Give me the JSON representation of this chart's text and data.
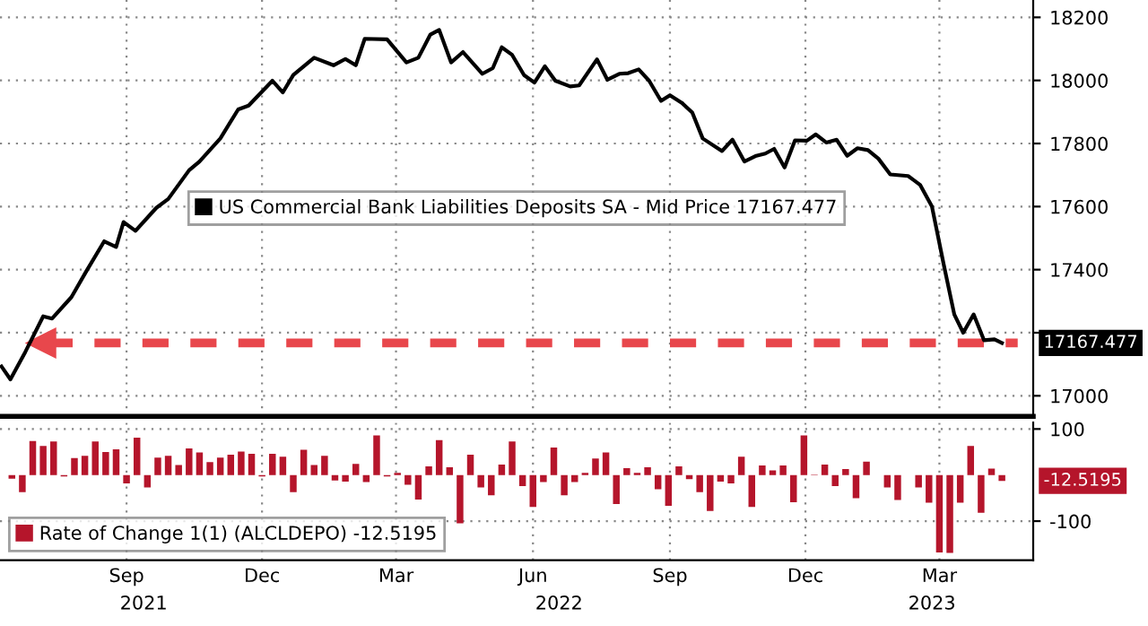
{
  "chart_data": [
    {
      "type": "line",
      "x": [
        "2021-06-23",
        "2021-06-29",
        "2021-07-09",
        "2021-07-21",
        "2021-07-27",
        "2021-08-09",
        "2021-08-19",
        "2021-08-31",
        "2021-09-08",
        "2021-09-13",
        "2021-09-21",
        "2021-10-05",
        "2021-10-13",
        "2021-10-27",
        "2021-11-03",
        "2021-11-17",
        "2021-11-29",
        "2021-12-06",
        "2021-12-22",
        "2021-12-29",
        "2022-01-05",
        "2022-01-19",
        "2022-02-01",
        "2022-02-09",
        "2022-02-16",
        "2022-02-22",
        "2022-03-09",
        "2022-03-22",
        "2022-03-30",
        "2022-04-07",
        "2022-04-13",
        "2022-04-21",
        "2022-04-29",
        "2022-05-12",
        "2022-05-19",
        "2022-05-25",
        "2022-06-01",
        "2022-06-09",
        "2022-06-16",
        "2022-06-23",
        "2022-06-30",
        "2022-07-10",
        "2022-07-16",
        "2022-07-28",
        "2022-08-04",
        "2022-08-12",
        "2022-08-18",
        "2022-08-25",
        "2022-09-01",
        "2022-09-09",
        "2022-09-15",
        "2022-09-23",
        "2022-09-30",
        "2022-10-07",
        "2022-10-20",
        "2022-10-27",
        "2022-11-04",
        "2022-11-12",
        "2022-11-18",
        "2022-11-24",
        "2022-12-01",
        "2022-12-08",
        "2022-12-16",
        "2022-12-22",
        "2022-12-29",
        "2023-01-05",
        "2023-01-12",
        "2023-01-19",
        "2023-01-26",
        "2023-02-02",
        "2023-02-10",
        "2023-02-22",
        "2023-03-02",
        "2023-03-10",
        "2023-03-18",
        "2023-03-25",
        "2023-03-31",
        "2023-04-07",
        "2023-04-14",
        "2023-04-21",
        "2023-04-26"
      ],
      "series": [
        {
          "name": "US Commercial Bank Liabilities Deposits SA - Mid Price 17167.477",
          "color": "#000000",
          "values": [
            17093,
            17052,
            17139,
            17252,
            17245,
            17313,
            17395,
            17490,
            17472,
            17551,
            17523,
            17596,
            17624,
            17715,
            17743,
            17816,
            17908,
            17920,
            17999,
            17962,
            18017,
            18072,
            18048,
            18068,
            18048,
            18132,
            18130,
            18057,
            18072,
            18145,
            18160,
            18057,
            18090,
            18021,
            18039,
            18105,
            18081,
            18017,
            17993,
            18045,
            17999,
            17981,
            17984,
            18067,
            18002,
            18021,
            18023,
            18035,
            17999,
            17935,
            17953,
            17929,
            17898,
            17816,
            17776,
            17812,
            17743,
            17761,
            17768,
            17783,
            17724,
            17810,
            17809,
            17829,
            17803,
            17812,
            17761,
            17785,
            17779,
            17752,
            17702,
            17697,
            17669,
            17600,
            17414,
            17258,
            17200,
            17258,
            17176,
            17179,
            17167.477
          ]
        }
      ],
      "xlim": [
        "2021-06-22",
        "2023-05-17"
      ],
      "xticks": [
        {
          "value": "2021-09-15",
          "label": null
        },
        {
          "value": "2021-12-15",
          "label": null
        },
        {
          "value": "2022-03-15",
          "label": null
        },
        {
          "value": "2022-06-15",
          "label": null
        },
        {
          "value": "2022-09-15",
          "label": null
        },
        {
          "value": "2022-12-15",
          "label": null
        },
        {
          "value": "2023-03-15",
          "label": null
        }
      ],
      "ylim": [
        16935,
        18255
      ],
      "yticks": [
        17000,
        {
          "value": 17200,
          "label": null
        },
        17400,
        17600,
        17800,
        18000,
        18200
      ],
      "tick_labels": "y",
      "grid": true,
      "legend": "center",
      "ref_lines": [
        {
          "axis": "y",
          "value": 17167.477,
          "color": "#e8474c",
          "line_style": "dashed"
        }
      ],
      "annotations": [
        {
          "text": "17167.477",
          "x": "2023-04-26",
          "y": 17167.477
        }
      ]
    },
    {
      "type": "bar",
      "x": [
        "2021-06-30",
        "2021-07-07",
        "2021-07-14",
        "2021-07-21",
        "2021-07-28",
        "2021-08-04",
        "2021-08-11",
        "2021-08-18",
        "2021-08-25",
        "2021-09-01",
        "2021-09-08",
        "2021-09-15",
        "2021-09-22",
        "2021-09-29",
        "2021-10-06",
        "2021-10-13",
        "2021-10-20",
        "2021-10-27",
        "2021-11-03",
        "2021-11-10",
        "2021-11-17",
        "2021-11-24",
        "2021-12-01",
        "2021-12-08",
        "2021-12-15",
        "2021-12-22",
        "2021-12-29",
        "2022-01-05",
        "2022-01-12",
        "2022-01-19",
        "2022-01-26",
        "2022-02-02",
        "2022-02-09",
        "2022-02-16",
        "2022-02-23",
        "2022-03-02",
        "2022-03-09",
        "2022-03-16",
        "2022-03-23",
        "2022-03-30",
        "2022-04-06",
        "2022-04-13",
        "2022-04-20",
        "2022-04-27",
        "2022-05-04",
        "2022-05-11",
        "2022-05-18",
        "2022-05-25",
        "2022-06-01",
        "2022-06-08",
        "2022-06-15",
        "2022-06-22",
        "2022-06-29",
        "2022-07-06",
        "2022-07-13",
        "2022-07-20",
        "2022-07-27",
        "2022-08-03",
        "2022-08-10",
        "2022-08-17",
        "2022-08-24",
        "2022-08-31",
        "2022-09-07",
        "2022-09-14",
        "2022-09-21",
        "2022-09-28",
        "2022-10-05",
        "2022-10-12",
        "2022-10-19",
        "2022-10-26",
        "2022-11-02",
        "2022-11-09",
        "2022-11-16",
        "2022-11-23",
        "2022-11-30",
        "2022-12-07",
        "2022-12-14",
        "2022-12-21",
        "2022-12-28",
        "2023-01-04",
        "2023-01-11",
        "2023-01-18",
        "2023-01-25",
        "2023-02-01",
        "2023-02-08",
        "2023-02-15",
        "2023-02-22",
        "2023-03-01",
        "2023-03-08",
        "2023-03-15",
        "2023-03-22",
        "2023-03-29",
        "2023-04-05",
        "2023-04-12",
        "2023-04-19",
        "2023-04-26"
      ],
      "series": [
        {
          "name": "Rate of Change 1(1) (ALCLDEPO) -12.5195",
          "color": "#b5152b",
          "values": [
            -8,
            -37,
            74,
            63,
            73,
            -3,
            37,
            42,
            73,
            50,
            56,
            -18,
            81,
            -27,
            38,
            42,
            22,
            58,
            49,
            28,
            38,
            44,
            51,
            46,
            -3,
            46,
            40,
            -37,
            55,
            22,
            42,
            -12,
            -14,
            24,
            -15,
            86,
            -3,
            5,
            -21,
            -53,
            19,
            76,
            17,
            -105,
            44,
            -27,
            -44,
            23,
            73,
            -24,
            -69,
            -15,
            60,
            -44,
            -15,
            5,
            36,
            49,
            -63,
            15,
            5,
            17,
            -31,
            -67,
            19,
            -9,
            -37,
            -78,
            -14,
            -18,
            40,
            -69,
            21,
            10,
            21,
            -59,
            86,
            1,
            23,
            -24,
            13,
            -50,
            29,
            null,
            -27,
            -54,
            0,
            -27,
            -60,
            -168,
            -169,
            -60,
            63,
            -82,
            14,
            -12.5195
          ]
        }
      ],
      "xlim": [
        "2021-06-22",
        "2023-05-17"
      ],
      "xticks": [
        {
          "value": "2021-09-15",
          "label": "Sep"
        },
        {
          "value": "2021-12-15",
          "label": "Dec"
        },
        {
          "value": "2022-03-15",
          "label": "Mar"
        },
        {
          "value": "2022-06-15",
          "label": "Jun"
        },
        {
          "value": "2022-09-15",
          "label": "Sep"
        },
        {
          "value": "2022-12-15",
          "label": "Dec"
        },
        {
          "value": "2023-03-15",
          "label": "Mar"
        }
      ],
      "ylim": [
        -185,
        114
      ],
      "yticks": [
        100,
        -100
      ],
      "grid": true,
      "legend": "bottom left",
      "annotations": [
        {
          "text": "-12.5195",
          "x": "2023-04-26",
          "y": -12.5195
        },
        "2021",
        "2022",
        "2023"
      ]
    }
  ]
}
